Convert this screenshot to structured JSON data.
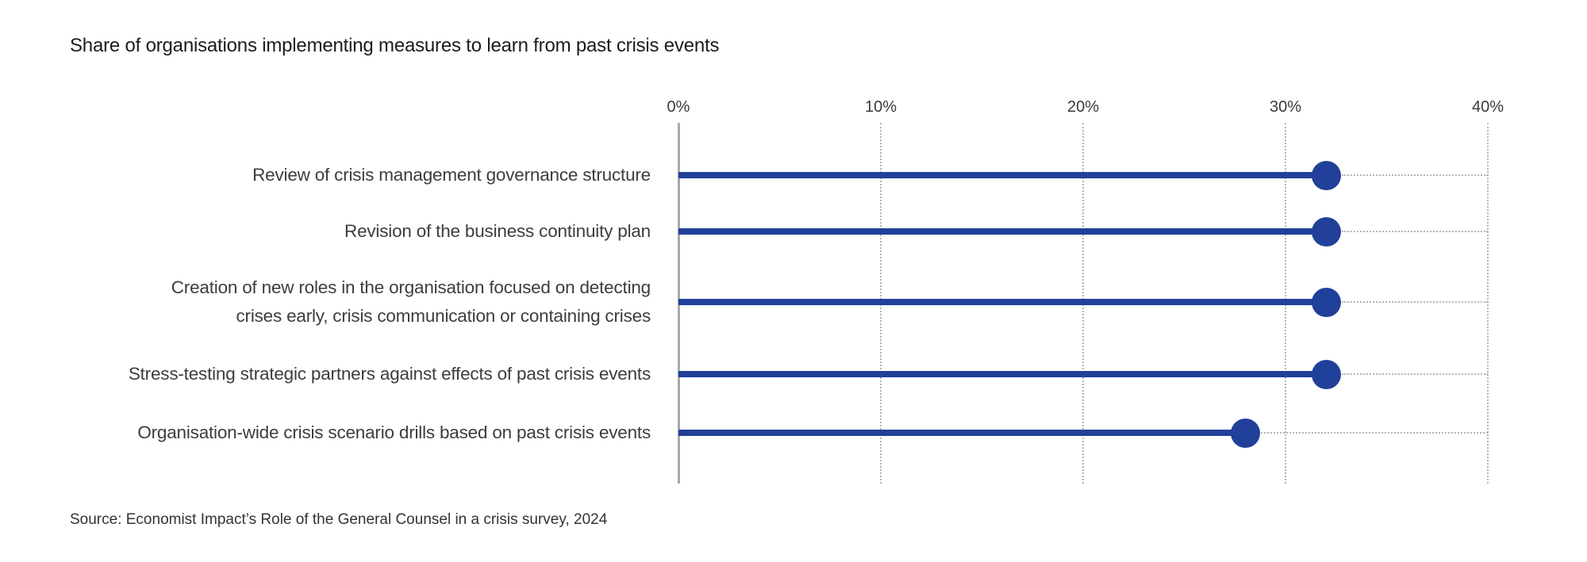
{
  "chart": {
    "title": "Share of organisations implementing measures to learn from past crisis events",
    "source": "Source: Economist Impact’s Role of the General Counsel in a crisis survey, 2024"
  },
  "chart_data": {
    "type": "bar",
    "subtype": "horizontal-lollipop",
    "title": "Share of organisations implementing measures to learn from past crisis events",
    "categories": [
      "Review of crisis management governance structure",
      "Revision of the business continuity plan",
      "Creation of new roles in the organisation focused on detecting\ncrises early, crisis communication or containing crises",
      "Stress-testing strategic partners against effects of past crisis events",
      "Organisation-wide crisis scenario drills based on past crisis events"
    ],
    "values": [
      32,
      32,
      32,
      32,
      28
    ],
    "unit": "%",
    "xlabel": "",
    "ylabel": "",
    "xlim": [
      0,
      40
    ],
    "x_ticks": [
      0,
      10,
      20,
      30,
      40
    ],
    "x_tick_labels": [
      "0%",
      "10%",
      "20%",
      "30%",
      "40%"
    ],
    "grid": "dotted vertical gridlines at each tick, dotted leader line from dot to right edge",
    "legend": "none",
    "accent_color": "#21409A",
    "grid_color": "#b5b5b5",
    "axis_color": "#a9a9a9",
    "source": "Source: Economist Impact’s Role of the General Counsel in a crisis survey, 2024"
  }
}
